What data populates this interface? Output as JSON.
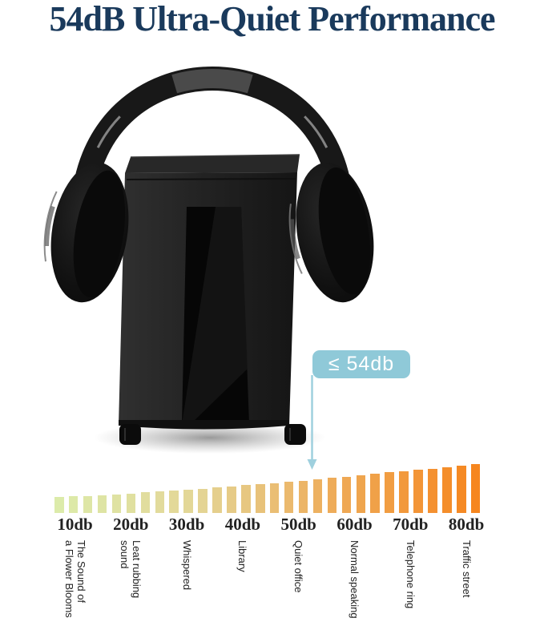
{
  "title": {
    "text": "54dB Ultra-Quiet Performance"
  },
  "colors": {
    "title": "#1a3a5c",
    "callout_bg": "#8fc9d8",
    "callout_text": "#ffffff",
    "arrow": "#9fd0de",
    "tick_label": "#222222",
    "desc_label": "#222222",
    "bar_gradient": [
      "#dcebaa",
      "#e4d596",
      "#eeab58",
      "#f6861f"
    ]
  },
  "illustration": {
    "icon": "headphones-on-shredder-icon"
  },
  "chart_data": {
    "type": "bar",
    "title": "",
    "xlabel": "",
    "ylabel": "",
    "unit": "db",
    "grid": false,
    "legend": false,
    "x_ticks": [
      "10db",
      "20db",
      "30db",
      "40db",
      "50db",
      "60db",
      "70db",
      "80db"
    ],
    "tick_examples": [
      "The Sound of\na Flower Blooms",
      "Leat rubbing\nsound",
      "Whispered",
      "Library",
      "Quiet office",
      "Normal speaking",
      "Telephone ring",
      "Traffic street"
    ],
    "values": [
      13,
      14,
      15,
      16,
      18,
      20,
      22,
      24,
      26,
      28,
      30,
      32,
      34,
      37,
      39,
      41,
      44,
      46,
      49,
      52,
      54,
      57,
      60,
      63,
      65,
      68,
      71,
      74,
      77,
      80
    ],
    "axis": {
      "x_min_label": "10db",
      "x_max_label": "80db"
    },
    "annotation": {
      "text": "≤ 54db",
      "arrow_points_to_db": 54
    }
  }
}
